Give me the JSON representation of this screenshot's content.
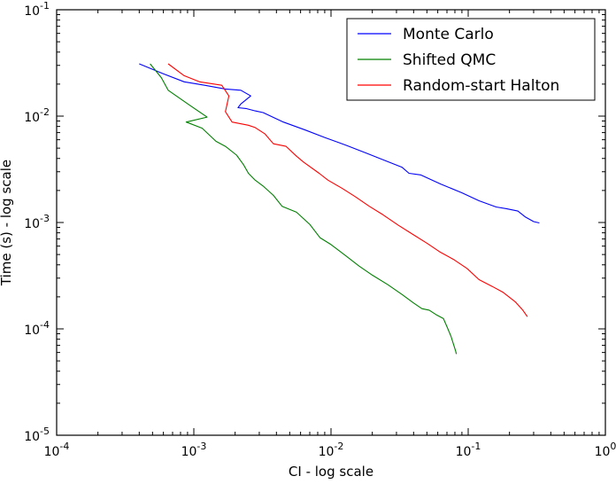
{
  "chart_data": {
    "type": "line",
    "xlabel": "CI - log scale",
    "ylabel": "Time (s) - log scale",
    "xscale": "log",
    "yscale": "log",
    "xlim": [
      0.0001,
      1
    ],
    "ylim": [
      1e-05,
      0.1
    ],
    "x_tick_labels": [
      "10^-4",
      "10^-3",
      "10^-2",
      "10^-1",
      "10^0"
    ],
    "y_tick_labels": [
      "10^-5",
      "10^-4",
      "10^-3",
      "10^-2",
      "10^-1"
    ],
    "grid": false,
    "legend_position": "top-right",
    "series": [
      {
        "name": "Monte Carlo",
        "color": "#0000ff",
        "points": [
          [
            0.0004,
            0.031
          ],
          [
            0.0006,
            0.025
          ],
          [
            0.00085,
            0.021
          ],
          [
            0.0012,
            0.0195
          ],
          [
            0.0017,
            0.018
          ],
          [
            0.0022,
            0.0175
          ],
          [
            0.0026,
            0.0155
          ],
          [
            0.0022,
            0.013
          ],
          [
            0.0021,
            0.012
          ],
          [
            0.0024,
            0.0118
          ],
          [
            0.0028,
            0.0112
          ],
          [
            0.0032,
            0.0108
          ],
          [
            0.0045,
            0.0088
          ],
          [
            0.0065,
            0.0074
          ],
          [
            0.009,
            0.0063
          ],
          [
            0.013,
            0.0053
          ],
          [
            0.018,
            0.0045
          ],
          [
            0.025,
            0.0038
          ],
          [
            0.033,
            0.0033
          ],
          [
            0.037,
            0.0029
          ],
          [
            0.045,
            0.0028
          ],
          [
            0.063,
            0.0023
          ],
          [
            0.09,
            0.0019
          ],
          [
            0.12,
            0.0016
          ],
          [
            0.16,
            0.0014
          ],
          [
            0.19,
            0.00135
          ],
          [
            0.23,
            0.00128
          ],
          [
            0.26,
            0.00113
          ],
          [
            0.3,
            0.00102
          ],
          [
            0.33,
            0.00099
          ]
        ]
      },
      {
        "name": "Shifted QMC",
        "color": "#008000",
        "points": [
          [
            0.00048,
            0.031
          ],
          [
            0.00058,
            0.023
          ],
          [
            0.00065,
            0.0175
          ],
          [
            0.00092,
            0.0128
          ],
          [
            0.00125,
            0.0098
          ],
          [
            0.00088,
            0.0088
          ],
          [
            0.00115,
            0.0077
          ],
          [
            0.00145,
            0.0058
          ],
          [
            0.0017,
            0.0052
          ],
          [
            0.00205,
            0.0043
          ],
          [
            0.0023,
            0.0035
          ],
          [
            0.0025,
            0.0029
          ],
          [
            0.0028,
            0.0025
          ],
          [
            0.0032,
            0.0022
          ],
          [
            0.0038,
            0.0018
          ],
          [
            0.0044,
            0.00142
          ],
          [
            0.0056,
            0.00125
          ],
          [
            0.007,
            0.00096
          ],
          [
            0.0083,
            0.00072
          ],
          [
            0.01,
            0.00062
          ],
          [
            0.013,
            0.00048
          ],
          [
            0.016,
            0.00039
          ],
          [
            0.02,
            0.00032
          ],
          [
            0.026,
            0.00026
          ],
          [
            0.033,
            0.00021
          ],
          [
            0.04,
            0.000175
          ],
          [
            0.046,
            0.000155
          ],
          [
            0.052,
            0.00015
          ],
          [
            0.059,
            0.000135
          ],
          [
            0.066,
            0.000125
          ],
          [
            0.07,
            0.000105
          ],
          [
            0.075,
            8.5e-05
          ],
          [
            0.078,
            7.2e-05
          ],
          [
            0.081,
            6.2e-05
          ],
          [
            0.082,
            5.8e-05
          ]
        ]
      },
      {
        "name": "Random-start Halton",
        "color": "#ff0000",
        "points": [
          [
            0.00065,
            0.031
          ],
          [
            0.00085,
            0.024
          ],
          [
            0.0011,
            0.021
          ],
          [
            0.0016,
            0.0195
          ],
          [
            0.0018,
            0.0155
          ],
          [
            0.0017,
            0.011
          ],
          [
            0.0019,
            0.0088
          ],
          [
            0.0025,
            0.0082
          ],
          [
            0.0028,
            0.0078
          ],
          [
            0.0033,
            0.0068
          ],
          [
            0.0038,
            0.0055
          ],
          [
            0.0047,
            0.0052
          ],
          [
            0.0056,
            0.0042
          ],
          [
            0.0063,
            0.0037
          ],
          [
            0.0082,
            0.0029
          ],
          [
            0.0095,
            0.0025
          ],
          [
            0.012,
            0.0021
          ],
          [
            0.015,
            0.00175
          ],
          [
            0.019,
            0.00142
          ],
          [
            0.024,
            0.00118
          ],
          [
            0.031,
            0.00094
          ],
          [
            0.039,
            0.00078
          ],
          [
            0.05,
            0.00064
          ],
          [
            0.062,
            0.00053
          ],
          [
            0.078,
            0.00045
          ],
          [
            0.098,
            0.00037
          ],
          [
            0.12,
            0.00029
          ],
          [
            0.15,
            0.00025
          ],
          [
            0.18,
            0.00022
          ],
          [
            0.22,
            0.00018
          ],
          [
            0.25,
            0.00015
          ],
          [
            0.27,
            0.00013
          ]
        ]
      }
    ]
  }
}
